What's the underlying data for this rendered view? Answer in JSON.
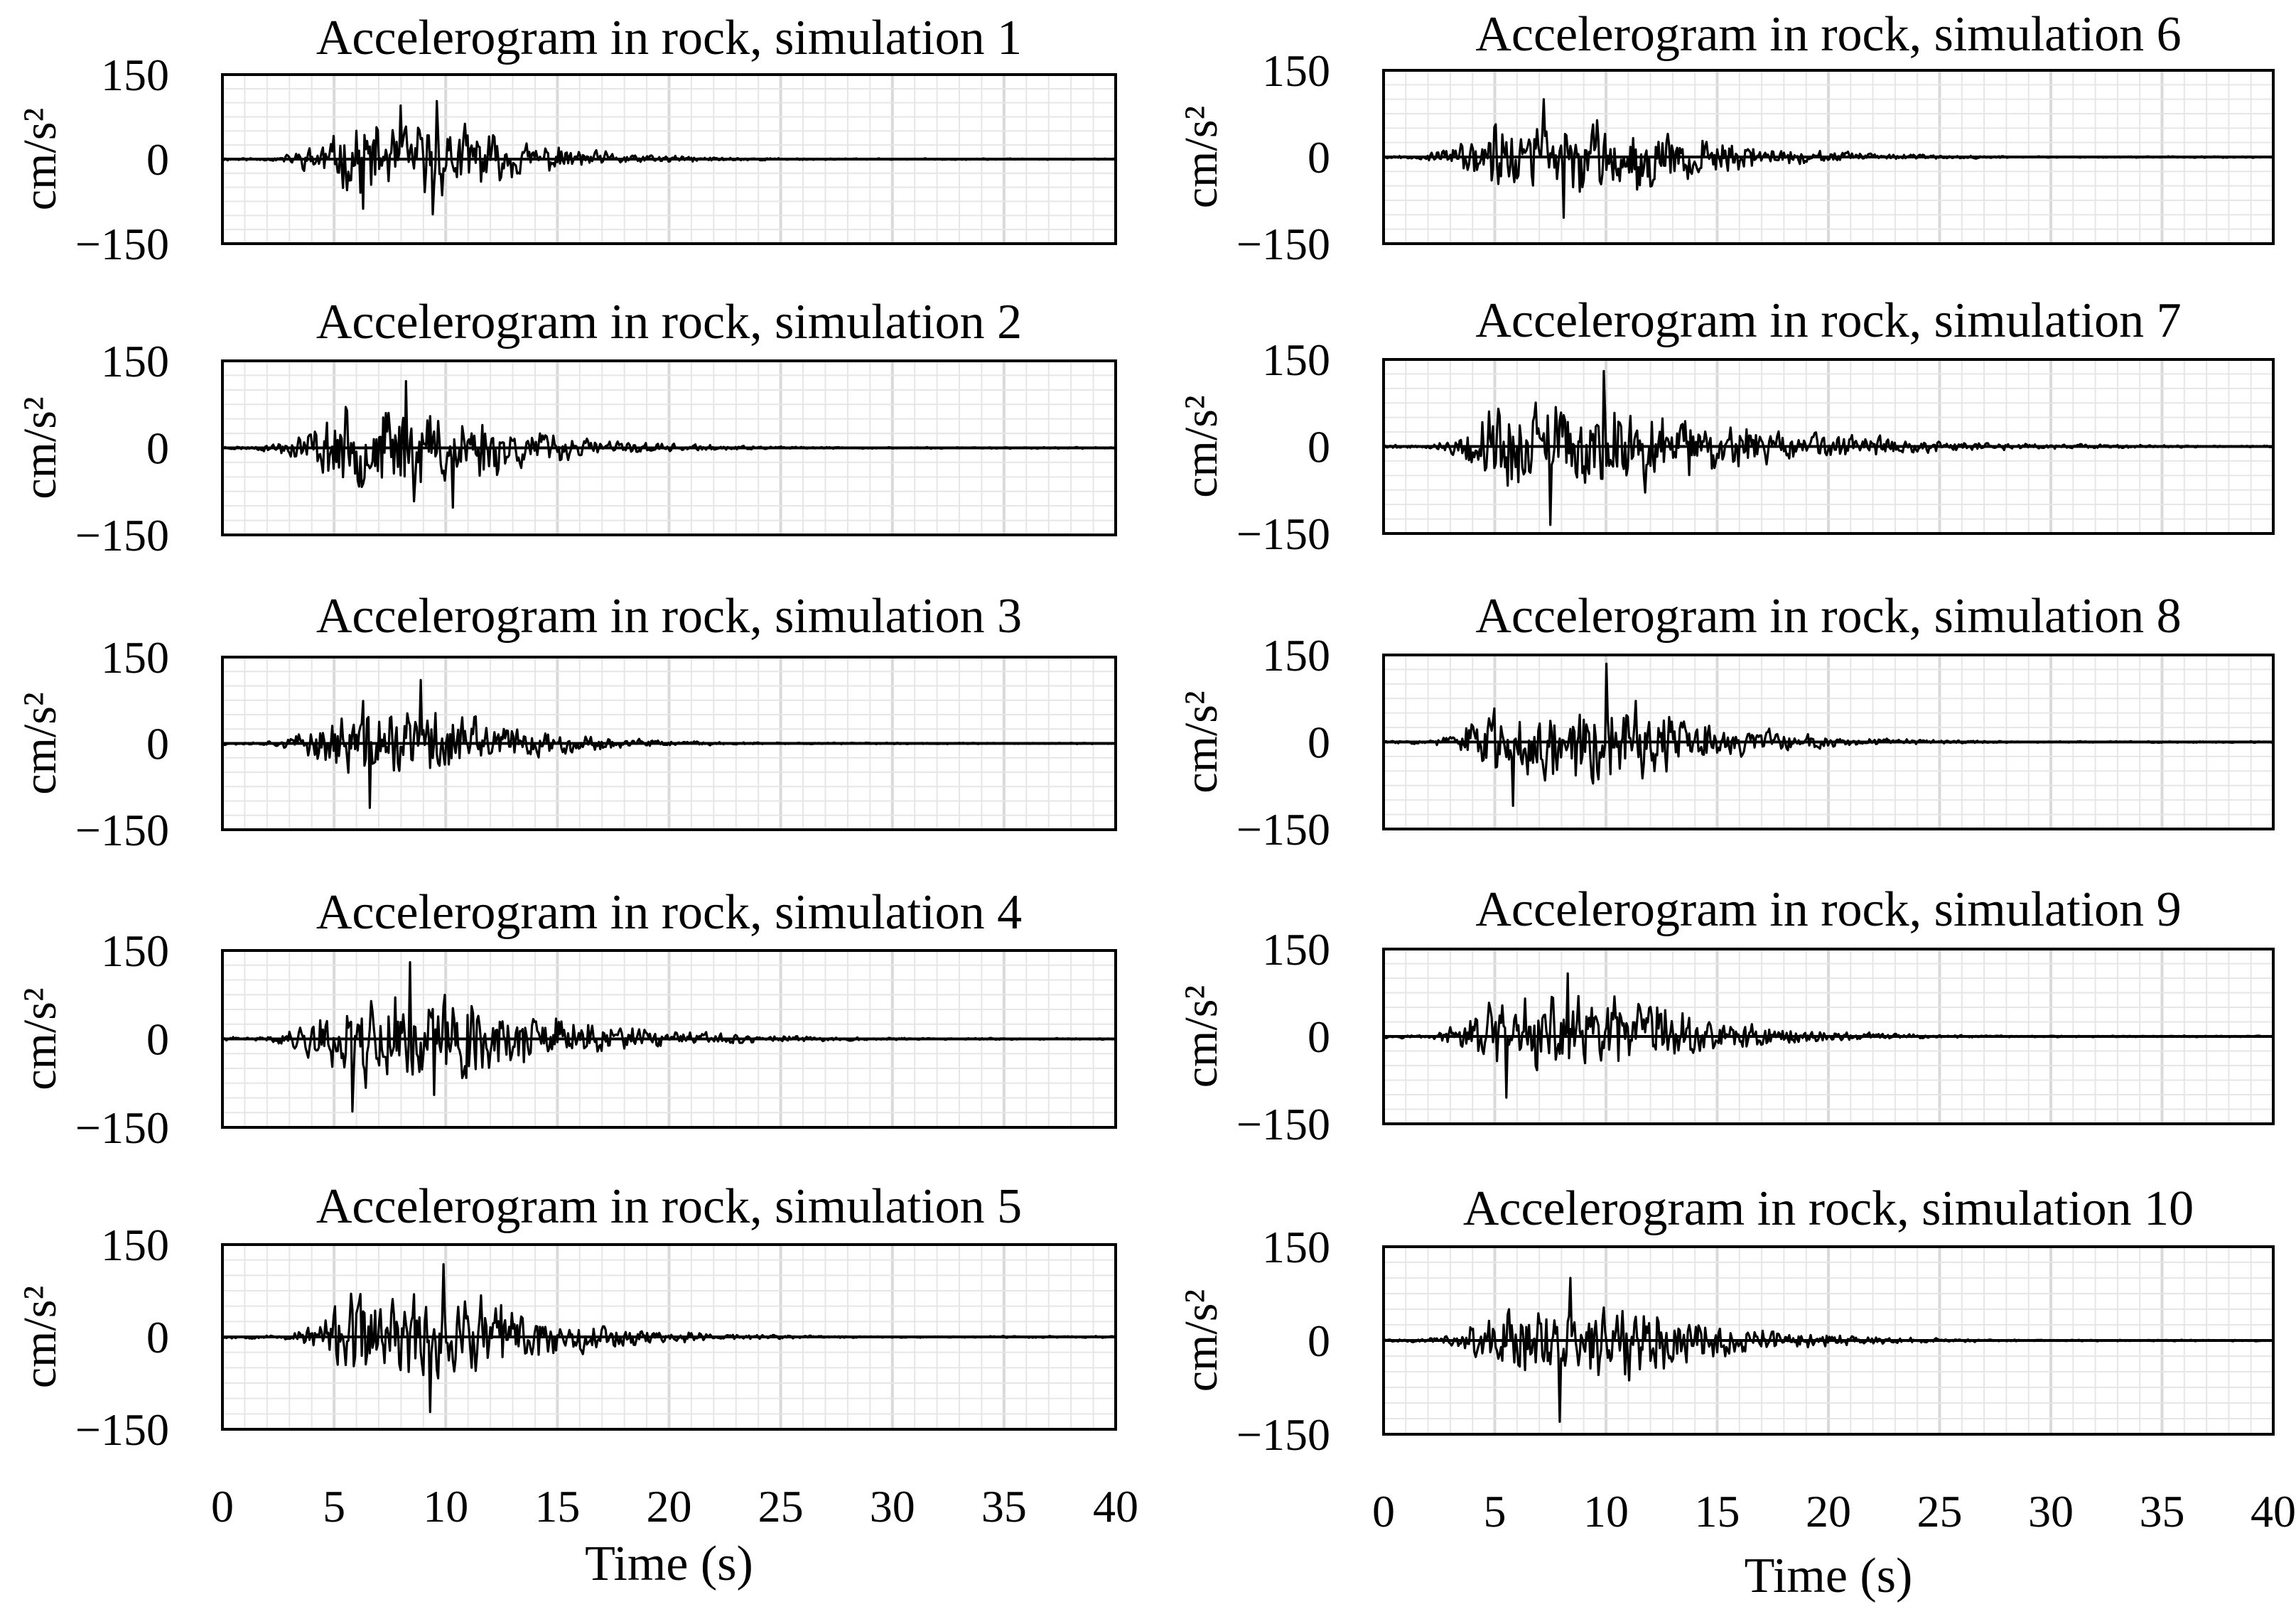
{
  "chart_data": [
    {
      "type": "line",
      "title": "Accelerogram in rock, simulation 1",
      "ylabel": "cm/s²",
      "xlabel": "",
      "xlim": [
        0,
        40
      ],
      "ylim": [
        -150,
        150
      ],
      "yticks": [
        "150",
        "0",
        "−150"
      ],
      "xticks": [],
      "grid": true,
      "envelope": {
        "onset": 2.0,
        "rise_end": 6.0,
        "plateau_end": 10.5,
        "decay_time": 4.2,
        "peak": 103,
        "seed": 11
      },
      "series": [
        {
          "x": [
            8.0,
            9.6,
            9.4,
            6.3
          ],
          "y": [
            95,
            103,
            -98,
            -88
          ]
        }
      ]
    },
    {
      "type": "line",
      "title": "Accelerogram in rock, simulation 2",
      "ylabel": "cm/s²",
      "xlabel": "",
      "xlim": [
        0,
        40
      ],
      "ylim": [
        -150,
        150
      ],
      "yticks": [
        "150",
        "0",
        "−150"
      ],
      "xticks": [],
      "grid": true,
      "envelope": {
        "onset": 1.5,
        "rise_end": 5.5,
        "plateau_end": 10.5,
        "decay_time": 4.2,
        "peak": 115,
        "seed": 23
      },
      "series": [
        {
          "x": [
            8.2,
            10.3,
            8.6
          ],
          "y": [
            115,
            -103,
            -92
          ]
        }
      ]
    },
    {
      "type": "line",
      "title": "Accelerogram in rock, simulation 3",
      "ylabel": "cm/s²",
      "xlabel": "",
      "xlim": [
        0,
        40
      ],
      "ylim": [
        -150,
        150
      ],
      "yticks": [
        "150",
        "0",
        "−150"
      ],
      "xticks": [],
      "grid": true,
      "envelope": {
        "onset": 2.0,
        "rise_end": 6.0,
        "plateau_end": 10.0,
        "decay_time": 3.8,
        "peak": 110,
        "seed": 37
      },
      "series": [
        {
          "x": [
            8.9,
            6.6
          ],
          "y": [
            110,
            -112
          ]
        }
      ]
    },
    {
      "type": "line",
      "title": "Accelerogram in rock, simulation 4",
      "ylabel": "cm/s²",
      "xlabel": "",
      "xlim": [
        0,
        40
      ],
      "ylim": [
        -150,
        150
      ],
      "yticks": [
        "150",
        "0",
        "−150"
      ],
      "xticks": [],
      "grid": true,
      "envelope": {
        "onset": 2.0,
        "rise_end": 5.5,
        "plateau_end": 11.0,
        "decay_time": 5.2,
        "peak": 125,
        "seed": 41
      },
      "series": [
        {
          "x": [
            8.4,
            5.8,
            9.5
          ],
          "y": [
            130,
            -123,
            -95
          ]
        }
      ]
    },
    {
      "type": "line",
      "title": "Accelerogram in rock, simulation 5",
      "ylabel": "cm/s²",
      "xlabel": "",
      "xlim": [
        0,
        40
      ],
      "ylim": [
        -150,
        150
      ],
      "yticks": [
        "150",
        "0",
        "−150"
      ],
      "xticks": [],
      "grid": true,
      "envelope": {
        "onset": 2.5,
        "rise_end": 6.0,
        "plateau_end": 11.5,
        "decay_time": 4.5,
        "peak": 115,
        "seed": 53
      },
      "series": [
        {
          "x": [
            9.9,
            9.3
          ],
          "y": [
            118,
            -122
          ]
        }
      ]
    },
    {
      "type": "line",
      "title": "Accelerogram in rock, simulation 6",
      "ylabel": "cm/s²",
      "xlabel": "",
      "xlim": [
        0,
        40
      ],
      "ylim": [
        -150,
        150
      ],
      "yticks": [
        "150",
        "0",
        "−150"
      ],
      "xticks": [],
      "grid": true,
      "envelope": {
        "onset": 1.5,
        "rise_end": 5.0,
        "plateau_end": 11.5,
        "decay_time": 4.5,
        "peak": 100,
        "seed": 67
      },
      "series": [
        {
          "x": [
            7.2,
            8.1
          ],
          "y": [
            100,
            -105
          ]
        }
      ]
    },
    {
      "type": "line",
      "title": "Accelerogram in rock, simulation 7",
      "ylabel": "cm/s²",
      "xlabel": "",
      "xlim": [
        0,
        40
      ],
      "ylim": [
        -150,
        150
      ],
      "yticks": [
        "150",
        "0",
        "−150"
      ],
      "xticks": [],
      "grid": true,
      "envelope": {
        "onset": 2.0,
        "rise_end": 5.0,
        "plateau_end": 12.0,
        "decay_time": 6.5,
        "peak": 120,
        "seed": 79
      },
      "series": [
        {
          "x": [
            9.9,
            7.5
          ],
          "y": [
            130,
            -135
          ]
        }
      ]
    },
    {
      "type": "line",
      "title": "Accelerogram in rock, simulation 8",
      "ylabel": "cm/s²",
      "xlabel": "",
      "xlim": [
        0,
        40
      ],
      "ylim": [
        -150,
        150
      ],
      "yticks": [
        "150",
        "0",
        "−150"
      ],
      "xticks": [],
      "grid": true,
      "envelope": {
        "onset": 2.0,
        "rise_end": 5.0,
        "plateau_end": 11.5,
        "decay_time": 4.5,
        "peak": 110,
        "seed": 83
      },
      "series": [
        {
          "x": [
            10.0,
            5.8
          ],
          "y": [
            135,
            -110
          ]
        }
      ]
    },
    {
      "type": "line",
      "title": "Accelerogram in rock, simulation 9",
      "ylabel": "cm/s²",
      "xlabel": "",
      "xlim": [
        0,
        40
      ],
      "ylim": [
        -150,
        150
      ],
      "yticks": [
        "150",
        "0",
        "−150"
      ],
      "xticks": [],
      "grid": true,
      "envelope": {
        "onset": 2.0,
        "rise_end": 5.0,
        "plateau_end": 12.0,
        "decay_time": 4.2,
        "peak": 105,
        "seed": 97
      },
      "series": [
        {
          "x": [
            8.3,
            5.5
          ],
          "y": [
            108,
            -105
          ]
        }
      ]
    },
    {
      "type": "line",
      "title": "Accelerogram in rock, simulation 10",
      "ylabel": "cm/s²",
      "xlabel": "Time (s)",
      "xlim": [
        0,
        40
      ],
      "ylim": [
        -150,
        150
      ],
      "yticks": [
        "150",
        "0",
        "−150"
      ],
      "xticks": [
        "0",
        "5",
        "10",
        "15",
        "20",
        "25",
        "30",
        "35",
        "40"
      ],
      "grid": true,
      "envelope": {
        "onset": 2.0,
        "rise_end": 5.0,
        "plateau_end": 12.0,
        "decay_time": 4.5,
        "peak": 95,
        "seed": 101
      },
      "series": [
        {
          "x": [
            8.4,
            7.9
          ],
          "y": [
            100,
            -130
          ]
        }
      ]
    }
  ],
  "bottom_axis_left": {
    "xticks": [
      "0",
      "5",
      "10",
      "15",
      "20",
      "25",
      "30",
      "35",
      "40"
    ],
    "xlabel": "Time (s)"
  }
}
